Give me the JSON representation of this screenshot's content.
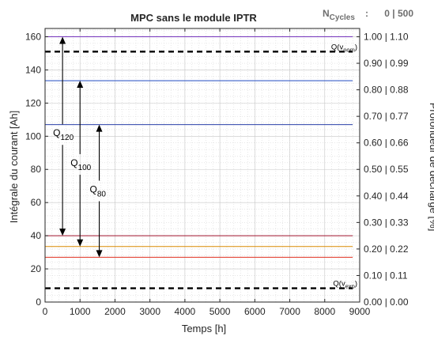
{
  "chart_data": {
    "type": "line",
    "title": "MPC sans le module IPTR",
    "xlabel": "Temps [h]",
    "ylabel": "Intégrale du courant [Ah]",
    "ylabel_right": "Profondeur de décharge [%]",
    "xlim": [
      0,
      9000
    ],
    "ylim": [
      0,
      165
    ],
    "x_ticks": [
      0,
      1000,
      2000,
      3000,
      4000,
      5000,
      6000,
      7000,
      8000,
      9000
    ],
    "y_ticks": [
      0,
      20,
      40,
      60,
      80,
      100,
      120,
      140,
      160
    ],
    "right_ticks": [
      {
        "y": 0,
        "label": "0.00 | 0.00"
      },
      {
        "y": 16,
        "label": "0.10 | 0.11"
      },
      {
        "y": 32,
        "label": "0.20 | 0.22"
      },
      {
        "y": 48,
        "label": "0.30 | 0.33"
      },
      {
        "y": 64,
        "label": "0.40 | 0.44"
      },
      {
        "y": 80,
        "label": "0.50 | 0.55"
      },
      {
        "y": 96,
        "label": "0.60 | 0.66"
      },
      {
        "y": 112,
        "label": "0.70 | 0.77"
      },
      {
        "y": 128,
        "label": "0.80 | 0.88"
      },
      {
        "y": 144,
        "label": "0.90 | 0.99"
      },
      {
        "y": 160,
        "label": "1.00 | 1.10"
      }
    ],
    "grid": true,
    "cycles": {
      "label_main": "N",
      "label_sub": "Cycles",
      "separator": ":",
      "value": "0 | 500"
    },
    "series": [
      {
        "style": "solid",
        "color": "#7b3fbf",
        "x": [
          0,
          8800
        ],
        "y": [
          160,
          160
        ]
      },
      {
        "style": "solid",
        "color": "#3a5fc8",
        "x": [
          0,
          8800
        ],
        "y": [
          133.5,
          133.5
        ]
      },
      {
        "style": "solid",
        "color": "#2a3fa8",
        "x": [
          0,
          8800
        ],
        "y": [
          107,
          107
        ]
      },
      {
        "style": "solid",
        "color": "#a2142f",
        "x": [
          0,
          8800
        ],
        "y": [
          40,
          40
        ]
      },
      {
        "style": "solid",
        "color": "#d98a00",
        "x": [
          0,
          8800
        ],
        "y": [
          33.5,
          33.5
        ]
      },
      {
        "style": "solid",
        "color": "#e03020",
        "x": [
          0,
          8800
        ],
        "y": [
          27,
          27
        ]
      },
      {
        "style": "dashed",
        "color": "#000000",
        "x": [
          0,
          8800
        ],
        "y": [
          151,
          151
        ]
      },
      {
        "style": "dashed",
        "color": "#000000",
        "x": [
          0,
          8800
        ],
        "y": [
          8.3,
          8.3
        ]
      }
    ],
    "reference_labels": [
      {
        "main": "Q(v",
        "sub": "nom",
        "end": ")",
        "y": 151
      },
      {
        "main": "Q(v",
        "sub": "exp",
        "end": ")",
        "y": 8.3
      }
    ],
    "arrows": [
      {
        "x": 500,
        "y_from": 160,
        "y_to": 40,
        "label_main": "Q",
        "label_sub": "120",
        "label_y": 101
      },
      {
        "x": 1000,
        "y_from": 133.5,
        "y_to": 33.5,
        "label_main": "Q",
        "label_sub": "100",
        "label_y": 83
      },
      {
        "x": 1550,
        "y_from": 107,
        "y_to": 27,
        "label_main": "Q",
        "label_sub": "80",
        "label_y": 67
      }
    ]
  }
}
